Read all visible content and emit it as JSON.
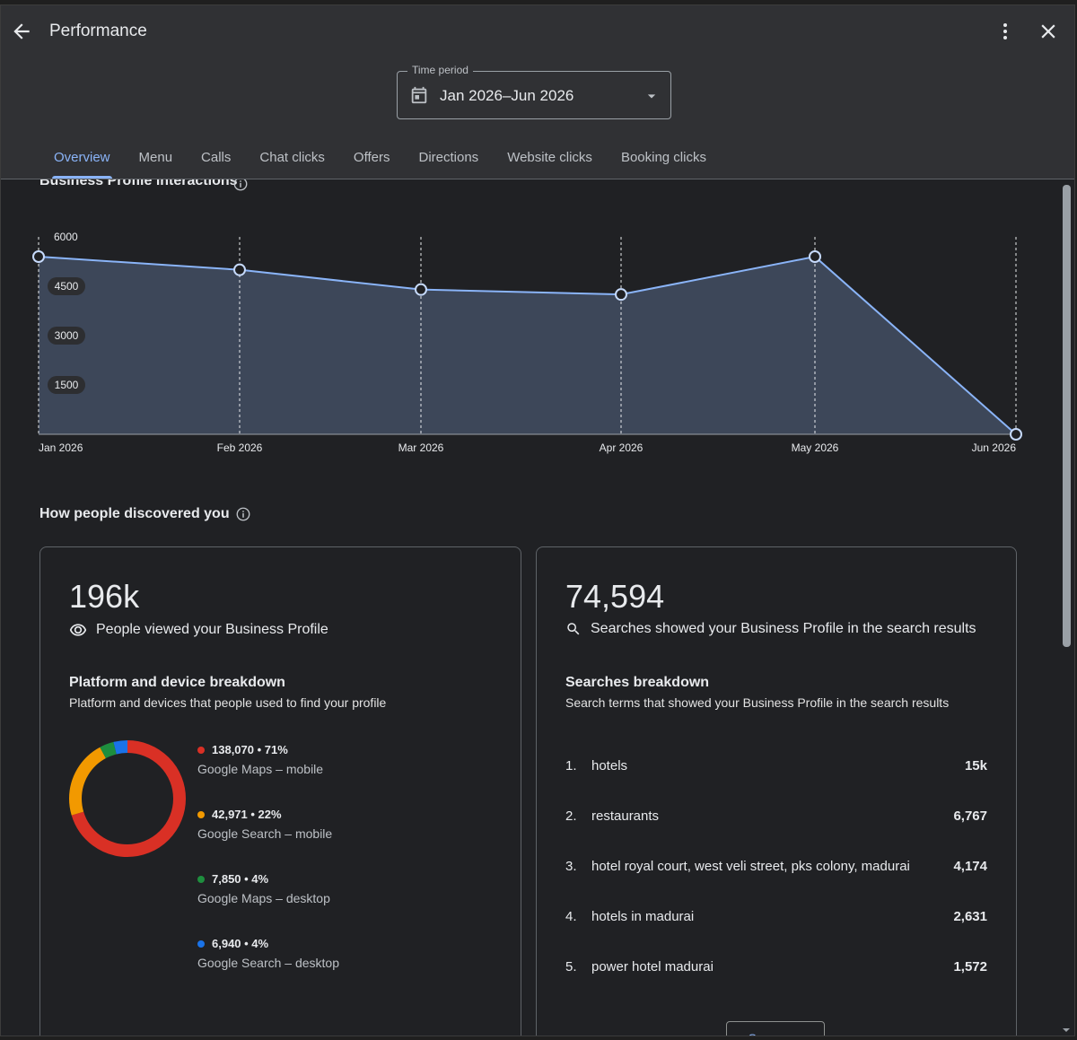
{
  "header": {
    "title": "Performance",
    "back_icon": "arrow-left-icon",
    "more_icon": "more-vert-icon",
    "close_icon": "close-icon"
  },
  "time_period": {
    "label": "Time period",
    "value": "Jan 2026–Jun 2026",
    "icon": "calendar-icon"
  },
  "tabs": [
    {
      "label": "Overview",
      "active": true
    },
    {
      "label": "Menu"
    },
    {
      "label": "Calls"
    },
    {
      "label": "Chat clicks"
    },
    {
      "label": "Offers"
    },
    {
      "label": "Directions"
    },
    {
      "label": "Website clicks"
    },
    {
      "label": "Booking clicks"
    }
  ],
  "interactions": {
    "title": "Business Profile interactions"
  },
  "chart_data": {
    "type": "area",
    "title": "Business Profile interactions",
    "x": [
      "Jan 2026",
      "Feb 2026",
      "Mar 2026",
      "Apr 2026",
      "May 2026",
      "Jun 2026"
    ],
    "series": [
      {
        "values": [
          5400,
          5000,
          4400,
          4250,
          5400,
          0
        ]
      }
    ],
    "y_ticks": [
      1500,
      3000,
      4500,
      6000
    ],
    "ylim": [
      0,
      6500
    ],
    "line_color": "#8ab4f8",
    "fill_color": "#3d4759"
  },
  "discovery": {
    "title": "How people discovered you"
  },
  "views_card": {
    "big_number": "196k",
    "description": "People viewed your Business Profile",
    "icon": "eye-icon",
    "breakdown_title": "Platform and device breakdown",
    "breakdown_desc": "Platform and devices that people used to find your profile",
    "platforms": [
      {
        "value": "138,070 • 71%",
        "name": "Google Maps – mobile",
        "color": "#d93025",
        "fraction": 0.71
      },
      {
        "value": "42,971 • 22%",
        "name": "Google Search – mobile",
        "color": "#f29900",
        "fraction": 0.22
      },
      {
        "value": "7,850 • 4%",
        "name": "Google Maps – desktop",
        "color": "#1e8e3e",
        "fraction": 0.04
      },
      {
        "value": "6,940 • 4%",
        "name": "Google Search – desktop",
        "color": "#1a73e8",
        "fraction": 0.04
      }
    ]
  },
  "searches_card": {
    "big_number": "74,594",
    "description": "Searches showed your Business Profile in the search results",
    "icon": "search-icon",
    "breakdown_title": "Searches breakdown",
    "breakdown_desc": "Search terms that showed your Business Profile in the search results",
    "terms": [
      {
        "rank": "1.",
        "term": "hotels",
        "count": "15k"
      },
      {
        "rank": "2.",
        "term": "restaurants",
        "count": "6,767"
      },
      {
        "rank": "3.",
        "term": "hotel royal court, west veli street, pks colony, madurai",
        "count": "4,174"
      },
      {
        "rank": "4.",
        "term": "hotels in madurai",
        "count": "2,631"
      },
      {
        "rank": "5.",
        "term": "power hotel madurai",
        "count": "1,572"
      }
    ],
    "see_more": "See more"
  }
}
